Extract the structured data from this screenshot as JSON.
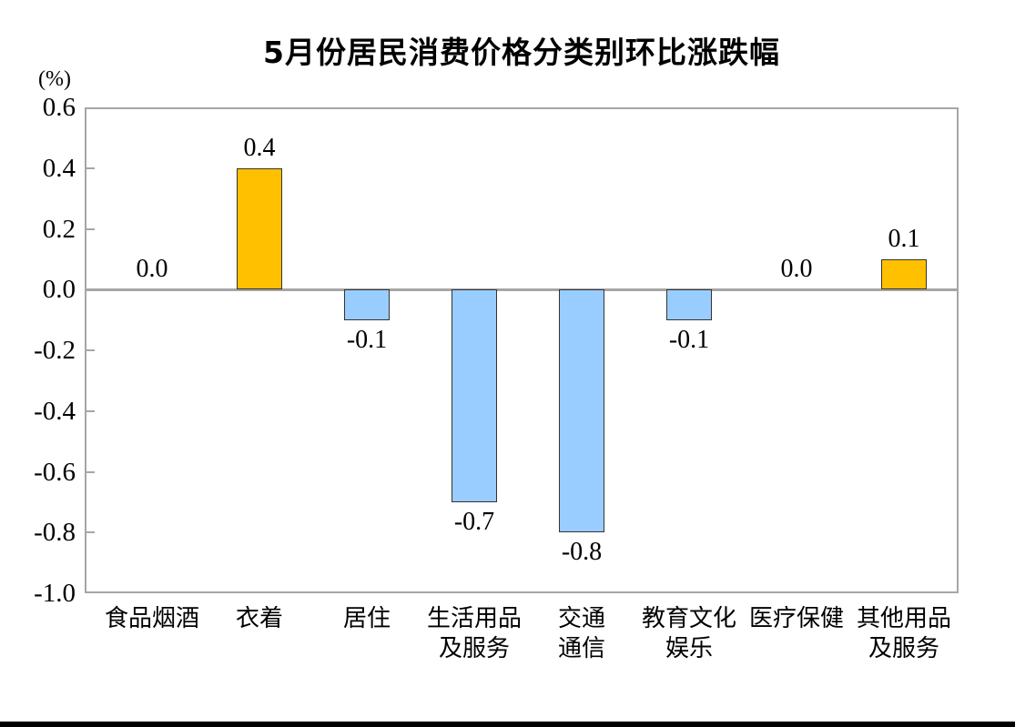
{
  "chart_data": {
    "type": "bar",
    "title": "5月份居民消费价格分类别环比涨跌幅",
    "unit_label": "(%)",
    "categories": [
      "食品烟酒",
      "衣着",
      "居住",
      "生活用品及服务",
      "交通通信",
      "教育文化娱乐",
      "医疗保健",
      "其他用品及服务"
    ],
    "category_label_lines": [
      [
        "食品烟酒"
      ],
      [
        "衣着"
      ],
      [
        "居住"
      ],
      [
        "生活用品",
        "及服务"
      ],
      [
        "交通",
        "通信"
      ],
      [
        "教育文化",
        "娱乐"
      ],
      [
        "医疗保健"
      ],
      [
        "其他用品",
        "及服务"
      ]
    ],
    "values": [
      0.0,
      0.4,
      -0.1,
      -0.7,
      -0.8,
      -0.1,
      0.0,
      0.1
    ],
    "value_labels": [
      "0.0",
      "0.4",
      "-0.1",
      "-0.7",
      "-0.8",
      "-0.1",
      "0.0",
      "0.1"
    ],
    "ylabel": "",
    "xlabel": "",
    "ylim": [
      -1.0,
      0.6
    ],
    "y_tick_labels": [
      "0.6",
      "0.4",
      "0.2",
      "0.0",
      "-0.2",
      "-0.4",
      "-0.6",
      "-0.8",
      "-1.0"
    ],
    "y_tick_values": [
      0.6,
      0.4,
      0.2,
      0.0,
      -0.2,
      -0.4,
      -0.6,
      -0.8,
      -1.0
    ],
    "grid": false,
    "legend_position": "none",
    "colors": {
      "positive_bar": "#FFC000",
      "negative_bar": "#99CCFF",
      "bar_border": "#333333",
      "axis_gray": "#A6A6A6",
      "text": "#000000",
      "bottom_rule": "#000000"
    }
  }
}
